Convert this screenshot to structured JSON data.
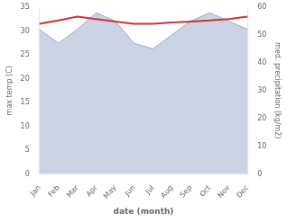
{
  "chart_data": {
    "type": "line",
    "categories": [
      "Jan",
      "Feb",
      "Mar",
      "Apr",
      "May",
      "Jun",
      "Jul",
      "Aug",
      "Sep",
      "Oct",
      "Nov",
      "Dec"
    ],
    "series": [
      {
        "type": "line",
        "color": "#cc3333",
        "values": [
          31.5,
          32.2,
          33.0,
          32.5,
          32.0,
          31.5,
          31.5,
          31.8,
          32.0,
          32.2,
          32.5,
          33.0
        ]
      },
      {
        "type": "area",
        "color": "#9aa8cc",
        "axis": "y2",
        "values": [
          52,
          47,
          52,
          58,
          55,
          47,
          45,
          50,
          55,
          58,
          55,
          52
        ]
      }
    ],
    "xlabel": "date (month)",
    "ylabel": "max temp (C)",
    "y2label": "med. precipitation (kg/m2)",
    "ylim": [
      0,
      35
    ],
    "yticks": [
      0,
      5,
      10,
      15,
      20,
      25,
      30,
      35
    ],
    "y2lim": [
      0,
      60
    ],
    "y2ticks": [
      0,
      10,
      20,
      30,
      40,
      50,
      60
    ],
    "grid": false
  }
}
